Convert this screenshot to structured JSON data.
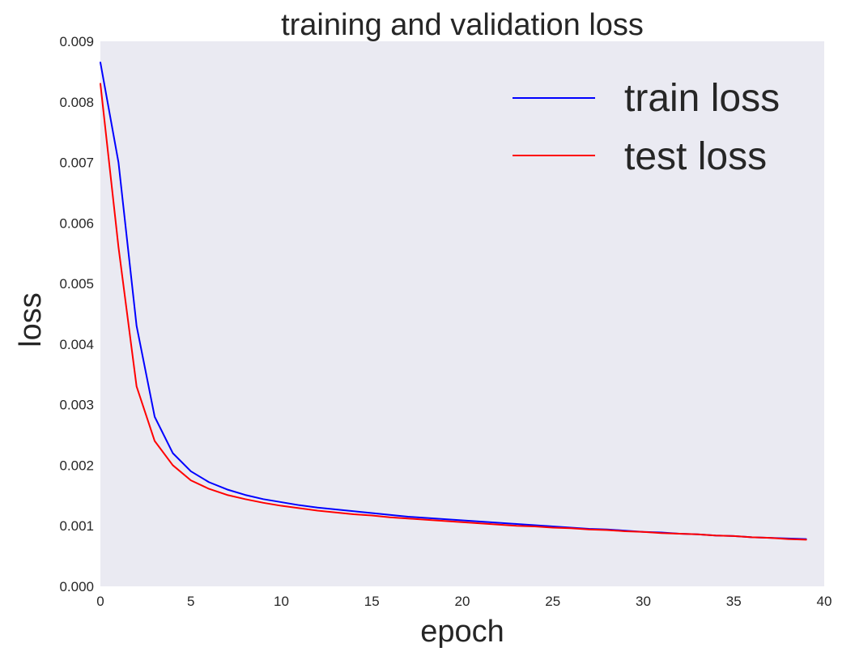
{
  "chart_data": {
    "type": "line",
    "title": "training and validation loss",
    "xlabel": "epoch",
    "ylabel": "loss",
    "xlim": [
      0,
      40
    ],
    "ylim": [
      0,
      0.009
    ],
    "grid": false,
    "legend_position": "top-right",
    "x_ticks": [
      0,
      5,
      10,
      15,
      20,
      25,
      30,
      35,
      40
    ],
    "x_tick_labels": [
      "0",
      "5",
      "10",
      "15",
      "20",
      "25",
      "30",
      "35",
      "40"
    ],
    "y_ticks": [
      0,
      0.001,
      0.002,
      0.003,
      0.004,
      0.005,
      0.006,
      0.007,
      0.008,
      0.009
    ],
    "y_tick_labels": [
      "0.000",
      "0.001",
      "0.002",
      "0.003",
      "0.004",
      "0.005",
      "0.006",
      "0.007",
      "0.008",
      "0.009"
    ],
    "x": [
      0,
      1,
      2,
      3,
      4,
      5,
      6,
      7,
      8,
      9,
      10,
      11,
      12,
      13,
      14,
      15,
      16,
      17,
      18,
      19,
      20,
      21,
      22,
      23,
      24,
      25,
      26,
      27,
      28,
      29,
      30,
      31,
      32,
      33,
      34,
      35,
      36,
      37,
      38,
      39
    ],
    "series": [
      {
        "name": "train loss",
        "color": "#0000ff",
        "values": [
          0.00865,
          0.007,
          0.0043,
          0.0028,
          0.0022,
          0.0019,
          0.00172,
          0.0016,
          0.00151,
          0.00144,
          0.00139,
          0.00134,
          0.0013,
          0.00127,
          0.00124,
          0.00121,
          0.00118,
          0.00115,
          0.00113,
          0.00111,
          0.00109,
          0.00107,
          0.00105,
          0.00103,
          0.00101,
          0.00099,
          0.00097,
          0.00095,
          0.00094,
          0.00092,
          0.0009,
          0.00089,
          0.00087,
          0.00086,
          0.00084,
          0.00083,
          0.00081,
          0.0008,
          0.00079,
          0.00078
        ]
      },
      {
        "name": "test loss",
        "color": "#ff0000",
        "values": [
          0.0083,
          0.0056,
          0.0033,
          0.0024,
          0.002,
          0.00175,
          0.00161,
          0.00151,
          0.00144,
          0.00138,
          0.00133,
          0.00129,
          0.00125,
          0.00122,
          0.00119,
          0.00117,
          0.00114,
          0.00112,
          0.0011,
          0.00108,
          0.00106,
          0.00104,
          0.00102,
          0.001,
          0.00099,
          0.00097,
          0.00096,
          0.00094,
          0.00093,
          0.00091,
          0.0009,
          0.00088,
          0.00087,
          0.00086,
          0.00084,
          0.00083,
          0.00081,
          0.0008,
          0.00078,
          0.00077
        ]
      }
    ]
  }
}
